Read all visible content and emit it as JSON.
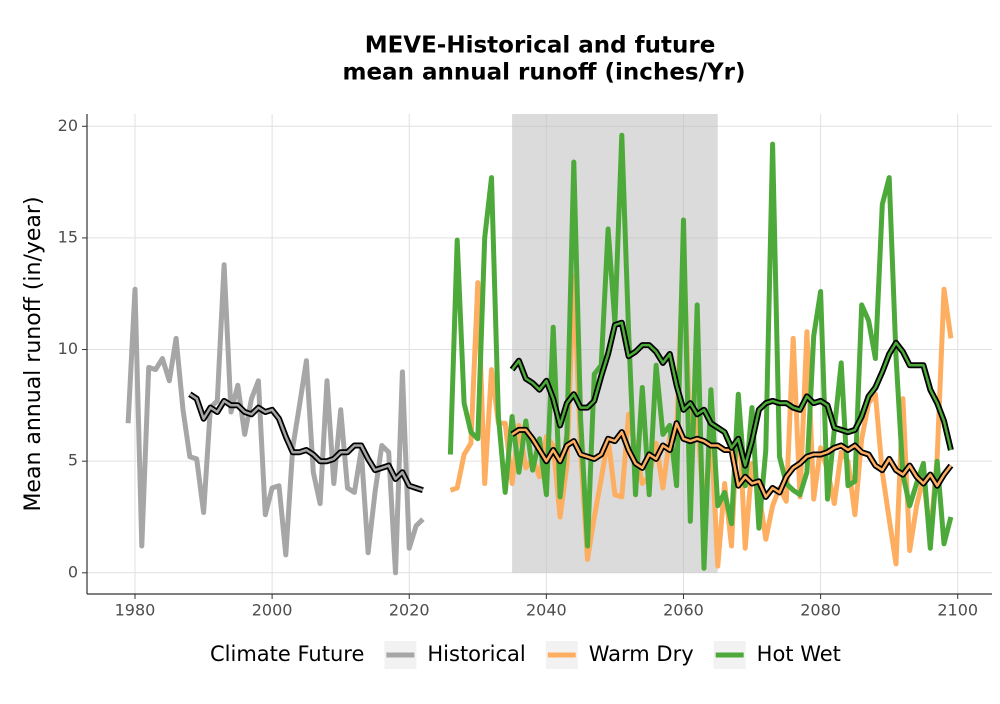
{
  "chart_data": {
    "type": "line",
    "title": [
      "MEVE-Historical and future",
      "mean annual runoff (inches/Yr)"
    ],
    "y_label": "Mean annual runoff (in/year)",
    "legend_title": "Climate Future",
    "legend_position": "bottom",
    "grid": true,
    "shade": [
      2035,
      2065
    ],
    "xlim": [
      1973,
      2105
    ],
    "ylim": [
      -0.95,
      20.55
    ],
    "xticks": [
      1980,
      2000,
      2020,
      2040,
      2060,
      2080,
      2100
    ],
    "yticks": [
      0,
      5,
      10,
      15,
      20
    ],
    "x": [
      1979,
      1980,
      1981,
      1982,
      1983,
      1984,
      1985,
      1986,
      1987,
      1988,
      1989,
      1990,
      1991,
      1992,
      1993,
      1994,
      1995,
      1996,
      1997,
      1998,
      1999,
      2000,
      2001,
      2002,
      2003,
      2004,
      2005,
      2006,
      2007,
      2008,
      2009,
      2010,
      2011,
      2012,
      2013,
      2014,
      2015,
      2016,
      2017,
      2018,
      2019,
      2020,
      2021,
      2022,
      2023,
      2024,
      2025,
      2026,
      2027,
      2028,
      2029,
      2030,
      2031,
      2032,
      2033,
      2034,
      2035,
      2036,
      2037,
      2038,
      2039,
      2040,
      2041,
      2042,
      2043,
      2044,
      2045,
      2046,
      2047,
      2048,
      2049,
      2050,
      2051,
      2052,
      2053,
      2054,
      2055,
      2056,
      2057,
      2058,
      2059,
      2060,
      2061,
      2062,
      2063,
      2064,
      2065,
      2066,
      2067,
      2068,
      2069,
      2070,
      2071,
      2072,
      2073,
      2074,
      2075,
      2076,
      2077,
      2078,
      2079,
      2080,
      2081,
      2082,
      2083,
      2084,
      2085,
      2086,
      2087,
      2088,
      2089,
      2090,
      2091,
      2092,
      2093,
      2094,
      2095,
      2096,
      2097,
      2098,
      2099
    ],
    "series": [
      {
        "name": "Historical",
        "color": "#a6a6a6",
        "values": [
          6.7,
          12.7,
          1.2,
          9.2,
          9.1,
          9.6,
          8.6,
          10.5,
          7.3,
          5.2,
          5.1,
          2.7,
          7.4,
          7.7,
          13.8,
          7.2,
          8.4,
          6.2,
          7.8,
          8.6,
          2.6,
          3.8,
          3.9,
          0.8,
          5.6,
          7.5,
          9.5,
          4.5,
          3.1,
          8.6,
          4.0,
          7.3,
          3.8,
          3.6,
          5.5,
          0.9,
          3.6,
          5.7,
          5.4,
          0.0,
          9.0,
          1.1,
          2.1,
          2.4,
          null,
          null,
          null,
          null,
          null,
          null,
          null,
          null,
          null,
          null,
          null,
          null,
          null,
          null,
          null,
          null,
          null,
          null,
          null,
          null,
          null,
          null,
          null,
          null,
          null,
          null,
          null,
          null,
          null,
          null,
          null,
          null,
          null,
          null,
          null,
          null,
          null,
          null,
          null,
          null,
          null,
          null,
          null,
          null,
          null,
          null,
          null,
          null,
          null,
          null,
          null,
          null,
          null,
          null,
          null,
          null,
          null,
          null,
          null,
          null,
          null,
          null,
          null,
          null,
          null,
          null,
          null,
          null,
          null,
          null,
          null,
          null,
          null,
          null,
          null,
          null,
          null
        ],
        "smooth": [
          null,
          null,
          null,
          null,
          null,
          null,
          null,
          null,
          null,
          8.0,
          7.8,
          6.9,
          7.4,
          7.2,
          7.7,
          7.5,
          7.5,
          7.2,
          7.1,
          7.4,
          7.2,
          7.3,
          6.9,
          6.1,
          5.4,
          5.4,
          5.5,
          5.3,
          5.0,
          5.0,
          5.1,
          5.4,
          5.4,
          5.7,
          5.7,
          5.1,
          4.6,
          4.7,
          4.8,
          4.2,
          4.5,
          3.9,
          3.8,
          3.7,
          null,
          null,
          null,
          null,
          null,
          null,
          null,
          null,
          null,
          null,
          null,
          null,
          null,
          null,
          null,
          null,
          null,
          null,
          null,
          null,
          null,
          null,
          null,
          null,
          null,
          null,
          null,
          null,
          null,
          null,
          null,
          null,
          null,
          null,
          null,
          null,
          null,
          null,
          null,
          null,
          null,
          null,
          null,
          null,
          null,
          null,
          null,
          null,
          null,
          null,
          null,
          null,
          null,
          null,
          null,
          null,
          null,
          null,
          null,
          null,
          null,
          null,
          null,
          null,
          null,
          null,
          null,
          null,
          null,
          null,
          null,
          null,
          null,
          null,
          null,
          null,
          null
        ]
      },
      {
        "name": "Warm Dry",
        "color": "#fdae61",
        "values": [
          null,
          null,
          null,
          null,
          null,
          null,
          null,
          null,
          null,
          null,
          null,
          null,
          null,
          null,
          null,
          null,
          null,
          null,
          null,
          null,
          null,
          null,
          null,
          null,
          null,
          null,
          null,
          null,
          null,
          null,
          null,
          null,
          null,
          null,
          null,
          null,
          null,
          null,
          null,
          null,
          null,
          null,
          null,
          null,
          null,
          null,
          null,
          3.7,
          3.8,
          5.3,
          5.8,
          13.0,
          4.0,
          9.1,
          6.7,
          6.7,
          4.0,
          6.6,
          4.7,
          5.1,
          4.3,
          6.1,
          5.7,
          2.5,
          4.8,
          13.3,
          5.5,
          0.6,
          2.5,
          4.2,
          6.0,
          3.5,
          3.4,
          7.1,
          5.5,
          4.0,
          4.3,
          5.8,
          3.8,
          6.1,
          6.2,
          14.7,
          5.7,
          7.1,
          2.5,
          6.5,
          0.3,
          4.0,
          1.2,
          7.6,
          1.1,
          4.9,
          3.6,
          1.5,
          3.0,
          3.8,
          3.2,
          10.5,
          3.4,
          10.8,
          3.3,
          5.6,
          4.6,
          3.1,
          5.4,
          5.0,
          2.6,
          6.0,
          7.6,
          8.0,
          4.5,
          2.4,
          0.4,
          7.8,
          1.0,
          3.0,
          4.3,
          1.6,
          5.2,
          12.7,
          10.5
        ],
        "smooth": [
          null,
          null,
          null,
          null,
          null,
          null,
          null,
          null,
          null,
          null,
          null,
          null,
          null,
          null,
          null,
          null,
          null,
          null,
          null,
          null,
          null,
          null,
          null,
          null,
          null,
          null,
          null,
          null,
          null,
          null,
          null,
          null,
          null,
          null,
          null,
          null,
          null,
          null,
          null,
          null,
          null,
          null,
          null,
          null,
          null,
          null,
          null,
          null,
          null,
          null,
          null,
          null,
          null,
          null,
          null,
          null,
          6.2,
          6.4,
          6.4,
          6.0,
          5.5,
          5.0,
          5.5,
          5.0,
          5.7,
          5.9,
          5.3,
          5.2,
          5.1,
          5.3,
          6.0,
          5.9,
          6.3,
          5.5,
          4.9,
          4.7,
          5.3,
          5.1,
          5.7,
          5.5,
          6.7,
          6.0,
          5.9,
          6.0,
          5.9,
          5.7,
          5.7,
          5.5,
          5.5,
          3.9,
          4.3,
          4.0,
          4.1,
          3.4,
          3.8,
          3.6,
          4.3,
          4.7,
          4.9,
          5.2,
          5.3,
          5.3,
          5.4,
          5.6,
          5.7,
          5.5,
          5.7,
          5.4,
          5.3,
          4.8,
          4.6,
          5.1,
          4.6,
          4.4,
          4.8,
          4.3,
          4.0,
          4.4,
          3.9,
          4.4,
          4.8
        ]
      },
      {
        "name": "Hot Wet",
        "color": "#4daa3a",
        "values": [
          null,
          null,
          null,
          null,
          null,
          null,
          null,
          null,
          null,
          null,
          null,
          null,
          null,
          null,
          null,
          null,
          null,
          null,
          null,
          null,
          null,
          null,
          null,
          null,
          null,
          null,
          null,
          null,
          null,
          null,
          null,
          null,
          null,
          null,
          null,
          null,
          null,
          null,
          null,
          null,
          null,
          null,
          null,
          null,
          null,
          null,
          null,
          5.3,
          14.9,
          7.6,
          6.3,
          6.0,
          15.0,
          17.7,
          7.0,
          3.6,
          7.0,
          4.5,
          6.8,
          4.6,
          6.0,
          3.5,
          11.0,
          3.4,
          6.2,
          18.4,
          6.9,
          1.2,
          8.9,
          9.3,
          15.4,
          11.2,
          19.6,
          10.8,
          3.5,
          8.3,
          3.5,
          9.3,
          6.2,
          6.6,
          3.9,
          15.8,
          2.3,
          12.0,
          0.2,
          8.2,
          3.0,
          3.6,
          2.2,
          8.0,
          3.9,
          7.4,
          2.0,
          5.5,
          19.2,
          5.2,
          4.0,
          3.7,
          3.5,
          4.5,
          10.6,
          12.6,
          3.3,
          6.4,
          9.4,
          3.9,
          4.1,
          12.0,
          11.3,
          9.6,
          16.5,
          17.7,
          9.7,
          4.4,
          3.0,
          4.0,
          4.9,
          1.1,
          5.0,
          1.3,
          2.5
        ],
        "smooth": [
          null,
          null,
          null,
          null,
          null,
          null,
          null,
          null,
          null,
          null,
          null,
          null,
          null,
          null,
          null,
          null,
          null,
          null,
          null,
          null,
          null,
          null,
          null,
          null,
          null,
          null,
          null,
          null,
          null,
          null,
          null,
          null,
          null,
          null,
          null,
          null,
          null,
          null,
          null,
          null,
          null,
          null,
          null,
          null,
          null,
          null,
          null,
          null,
          null,
          null,
          null,
          null,
          null,
          null,
          null,
          null,
          9.1,
          9.5,
          8.7,
          8.5,
          8.2,
          8.6,
          7.8,
          6.6,
          7.6,
          8.0,
          7.4,
          7.4,
          7.7,
          8.8,
          9.8,
          11.1,
          11.2,
          9.7,
          9.9,
          10.2,
          10.2,
          9.9,
          9.4,
          9.8,
          8.4,
          7.3,
          7.6,
          7.1,
          7.3,
          6.7,
          6.5,
          6.3,
          5.6,
          6.0,
          4.8,
          5.9,
          7.3,
          7.6,
          7.7,
          7.6,
          7.6,
          7.4,
          7.3,
          7.9,
          7.6,
          7.7,
          7.5,
          6.5,
          6.4,
          6.3,
          6.4,
          7.0,
          7.9,
          8.3,
          9.0,
          9.8,
          10.3,
          9.9,
          9.3,
          9.3,
          9.3,
          8.2,
          7.6,
          6.8,
          5.5
        ]
      }
    ]
  }
}
